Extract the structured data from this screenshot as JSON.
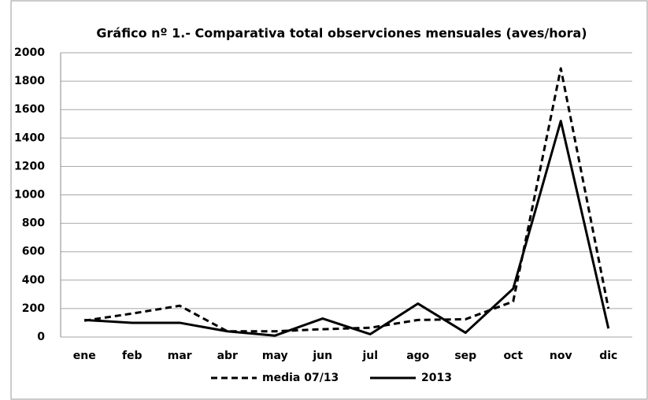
{
  "chart_data": {
    "type": "line",
    "title": "Gráfico nº 1.- Comparativa total observciones mensuales (aves/hora)",
    "categories": [
      "ene",
      "feb",
      "mar",
      "abr",
      "may",
      "jun",
      "jul",
      "ago",
      "sep",
      "oct",
      "nov",
      "dic"
    ],
    "series": [
      {
        "name": "media 07/13",
        "color": "#000000",
        "dash": true,
        "values": [
          115,
          165,
          220,
          40,
          40,
          55,
          65,
          120,
          125,
          250,
          1890,
          200
        ]
      },
      {
        "name": "2013",
        "color": "#000000",
        "dash": false,
        "values": [
          120,
          100,
          100,
          40,
          10,
          130,
          20,
          235,
          30,
          340,
          1520,
          60
        ]
      }
    ],
    "ylim": [
      0,
      2000
    ],
    "yticks": [
      0,
      200,
      400,
      600,
      800,
      1000,
      1200,
      1400,
      1600,
      1800,
      2000
    ],
    "grid": true
  }
}
